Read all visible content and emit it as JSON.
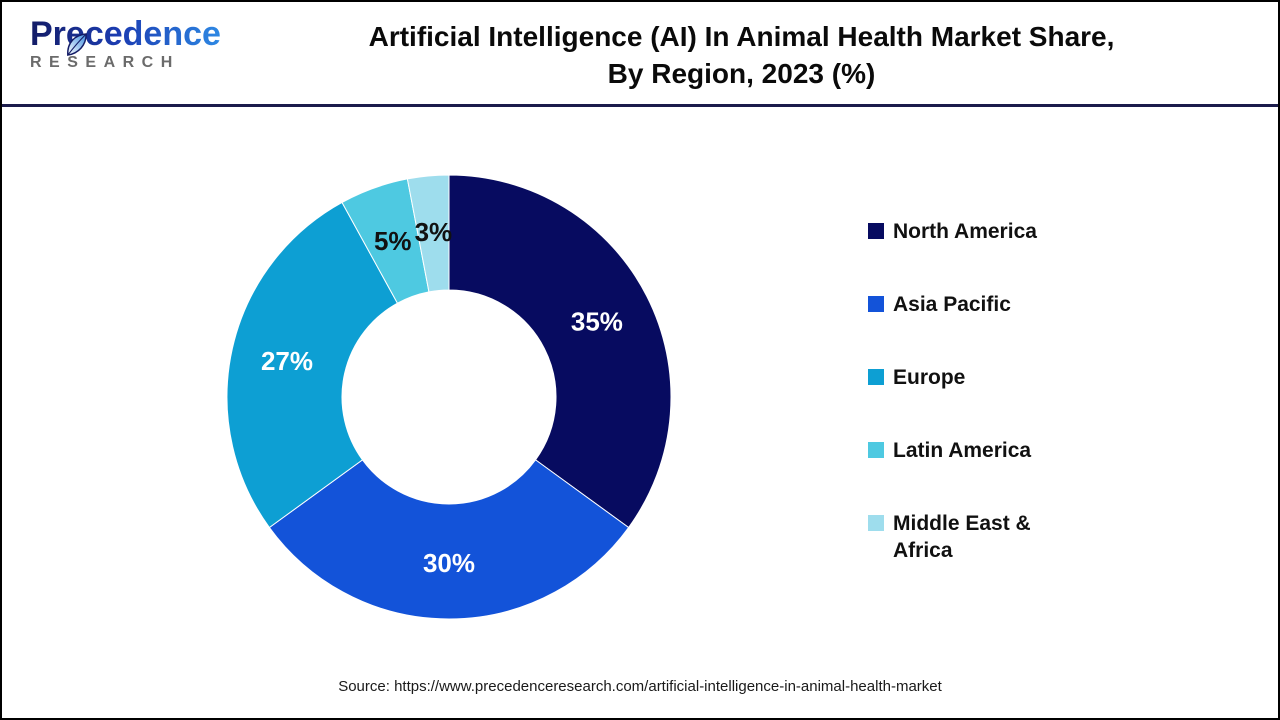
{
  "page": {
    "background": "#ffffff",
    "border_color": "#000000",
    "separator_color": "#1b1b4b"
  },
  "header": {
    "logo": {
      "brand": "Precedence",
      "subtitle": "RESEARCH",
      "brand_color_start": "#141c66",
      "brand_color_end": "#2f8fe8",
      "subtitle_color": "#6b6b6b"
    },
    "title_line1": "Artificial Intelligence (AI) In Animal Health Market Share,",
    "title_line2": "By Region, 2023 (%)"
  },
  "chart_data": {
    "type": "pie",
    "subtype": "donut",
    "title": "Artificial Intelligence (AI) In Animal Health Market Share, By Region, 2023 (%)",
    "categories": [
      "North America",
      "Asia Pacific",
      "Europe",
      "Latin America",
      "Middle East & Africa"
    ],
    "values": [
      35,
      30,
      27,
      5,
      3
    ],
    "total": 100,
    "unit": "%",
    "colors": [
      "#070b60",
      "#1353d9",
      "#0d9fd3",
      "#4ec9e1",
      "#9edded"
    ],
    "slice_label_colors": [
      "#ffffff",
      "#ffffff",
      "#ffffff",
      "#111111",
      "#111111"
    ],
    "start_angle_deg": 0,
    "direction": "clockwise",
    "inner_radius_ratio": 0.48,
    "grid": false,
    "legend_position": "right"
  },
  "legend": {
    "items": [
      {
        "label": "North America",
        "color": "#070b60"
      },
      {
        "label": "Asia Pacific",
        "color": "#1353d9"
      },
      {
        "label": "Europe",
        "color": "#0d9fd3"
      },
      {
        "label": "Latin America",
        "color": "#4ec9e1"
      },
      {
        "label": "Middle East & Africa",
        "color": "#9edded"
      }
    ]
  },
  "footer": {
    "source": "Source: https://www.precedenceresearch.com/artificial-intelligence-in-animal-health-market"
  }
}
